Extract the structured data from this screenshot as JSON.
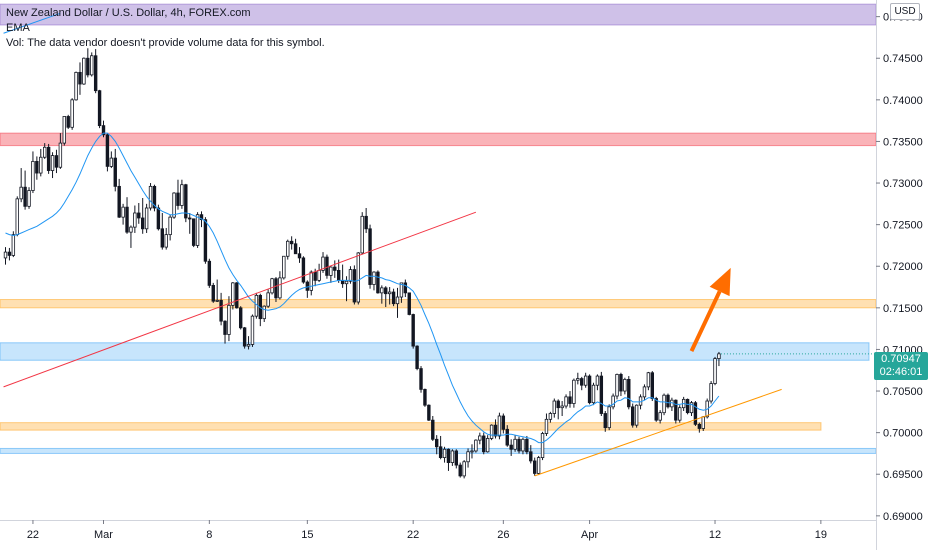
{
  "legend": {
    "title": "New Zealand Dollar / U.S. Dollar, 4h, FOREX.com",
    "ema": "EMA",
    "vol": "Vol: The data vendor doesn't provide volume data for this symbol."
  },
  "currency_button": "USD",
  "current_price": {
    "price": "0.70947",
    "countdown": "02:46:01"
  },
  "colors": {
    "up": "#26a69a",
    "down": "#ef5350",
    "candle": "#131722",
    "ema": "#2196f3",
    "trend_red": "#f23645",
    "trend_orange": "#ff9800",
    "arrow": "#ff6d00"
  },
  "chart_data": {
    "type": "candlestick",
    "symbol": "NZDUSD",
    "timeframe": "4h",
    "y_axis": {
      "ticks": [
        "0.75000",
        "0.74500",
        "0.74000",
        "0.73500",
        "0.73000",
        "0.72500",
        "0.72000",
        "0.71500",
        "0.71000",
        "0.70500",
        "0.70000",
        "0.69500",
        "0.69000"
      ],
      "ylim": [
        0.6895,
        0.752
      ]
    },
    "x_axis": {
      "ticks": [
        "22",
        "Mar",
        "8",
        "15",
        "22",
        "26",
        "Apr",
        "12",
        "19"
      ]
    },
    "zones": [
      {
        "color": "purple",
        "from": 0.749,
        "to": 0.7515
      },
      {
        "color": "red",
        "from": 0.7345,
        "to": 0.736
      },
      {
        "color": "orange",
        "from": 0.715,
        "to": 0.716
      },
      {
        "color": "blue",
        "from": 0.7087,
        "to": 0.7108
      },
      {
        "color": "orange",
        "from": 0.7003,
        "to": 0.7012
      },
      {
        "color": "blue",
        "from": 0.6975,
        "to": 0.6981
      }
    ],
    "candles": [
      [
        0.721,
        0.7223,
        0.7202,
        0.7217
      ],
      [
        0.7217,
        0.7222,
        0.7207,
        0.7213
      ],
      [
        0.7213,
        0.7242,
        0.7211,
        0.7238
      ],
      [
        0.7238,
        0.7284,
        0.7236,
        0.7281
      ],
      [
        0.7281,
        0.7318,
        0.7277,
        0.7295
      ],
      [
        0.7295,
        0.7315,
        0.7268,
        0.7272
      ],
      [
        0.7272,
        0.7295,
        0.7269,
        0.7291
      ],
      [
        0.7291,
        0.7338,
        0.7288,
        0.7326
      ],
      [
        0.7326,
        0.7332,
        0.7304,
        0.7312
      ],
      [
        0.7312,
        0.7341,
        0.7308,
        0.7331
      ],
      [
        0.7331,
        0.7348,
        0.7329,
        0.7343
      ],
      [
        0.7343,
        0.7347,
        0.7311,
        0.7315
      ],
      [
        0.7315,
        0.7337,
        0.7306,
        0.7333
      ],
      [
        0.7333,
        0.734,
        0.7312,
        0.7319
      ],
      [
        0.7319,
        0.736,
        0.7317,
        0.7348
      ],
      [
        0.7348,
        0.738,
        0.7345,
        0.738
      ],
      [
        0.738,
        0.7382,
        0.7365,
        0.7367
      ],
      [
        0.7367,
        0.7402,
        0.7364,
        0.74
      ],
      [
        0.74,
        0.7434,
        0.7399,
        0.7433
      ],
      [
        0.7433,
        0.7445,
        0.7406,
        0.7419
      ],
      [
        0.7419,
        0.7451,
        0.7418,
        0.745
      ],
      [
        0.745,
        0.7462,
        0.7427,
        0.743
      ],
      [
        0.743,
        0.7457,
        0.7428,
        0.7453
      ],
      [
        0.7453,
        0.7461,
        0.7408,
        0.7411
      ],
      [
        0.7411,
        0.7412,
        0.7366,
        0.7369
      ],
      [
        0.7369,
        0.7375,
        0.7355,
        0.7358
      ],
      [
        0.7358,
        0.736,
        0.7314,
        0.732
      ],
      [
        0.732,
        0.7338,
        0.7318,
        0.733
      ],
      [
        0.733,
        0.7341,
        0.729,
        0.7296
      ],
      [
        0.7296,
        0.7305,
        0.7258,
        0.7259
      ],
      [
        0.7259,
        0.7275,
        0.725,
        0.7271
      ],
      [
        0.7271,
        0.7283,
        0.7239,
        0.7241
      ],
      [
        0.7241,
        0.7249,
        0.7222,
        0.7247
      ],
      [
        0.7247,
        0.7273,
        0.724,
        0.7264
      ],
      [
        0.7264,
        0.7276,
        0.7251,
        0.7258
      ],
      [
        0.7258,
        0.7282,
        0.7239,
        0.7245
      ],
      [
        0.7245,
        0.7275,
        0.724,
        0.727
      ],
      [
        0.727,
        0.73,
        0.7267,
        0.7296
      ],
      [
        0.7296,
        0.7298,
        0.7266,
        0.727
      ],
      [
        0.727,
        0.7274,
        0.7243,
        0.7245
      ],
      [
        0.7245,
        0.7264,
        0.722,
        0.7223
      ],
      [
        0.7223,
        0.7246,
        0.722,
        0.7238
      ],
      [
        0.7238,
        0.7262,
        0.7231,
        0.7259
      ],
      [
        0.7259,
        0.7289,
        0.7257,
        0.7288
      ],
      [
        0.7288,
        0.7304,
        0.7268,
        0.7273
      ],
      [
        0.7273,
        0.7304,
        0.7269,
        0.7298
      ],
      [
        0.7298,
        0.7299,
        0.7253,
        0.7258
      ],
      [
        0.7258,
        0.7264,
        0.7239,
        0.7257
      ],
      [
        0.7257,
        0.7257,
        0.7223,
        0.7225
      ],
      [
        0.7225,
        0.7265,
        0.7222,
        0.7262
      ],
      [
        0.7262,
        0.7266,
        0.7247,
        0.7256
      ],
      [
        0.7256,
        0.7259,
        0.7203,
        0.7206
      ],
      [
        0.7206,
        0.7209,
        0.7174,
        0.7177
      ],
      [
        0.7177,
        0.718,
        0.7156,
        0.7158
      ],
      [
        0.7158,
        0.7184,
        0.7157,
        0.7159
      ],
      [
        0.7159,
        0.7168,
        0.7129,
        0.7134
      ],
      [
        0.7134,
        0.7135,
        0.7107,
        0.7118
      ],
      [
        0.7118,
        0.7164,
        0.711,
        0.7153
      ],
      [
        0.7153,
        0.7181,
        0.7148,
        0.718
      ],
      [
        0.718,
        0.7181,
        0.7149,
        0.715
      ],
      [
        0.715,
        0.7152,
        0.7124,
        0.7126
      ],
      [
        0.7126,
        0.7127,
        0.7101,
        0.7104
      ],
      [
        0.7104,
        0.7116,
        0.71,
        0.7106
      ],
      [
        0.7106,
        0.7142,
        0.7103,
        0.714
      ],
      [
        0.714,
        0.7168,
        0.7137,
        0.7165
      ],
      [
        0.7165,
        0.7167,
        0.7128,
        0.7137
      ],
      [
        0.7137,
        0.7153,
        0.7133,
        0.7152
      ],
      [
        0.7152,
        0.7172,
        0.715,
        0.7168
      ],
      [
        0.7168,
        0.7186,
        0.7166,
        0.7185
      ],
      [
        0.7185,
        0.7187,
        0.7157,
        0.7162
      ],
      [
        0.7162,
        0.7194,
        0.716,
        0.7186
      ],
      [
        0.7186,
        0.7212,
        0.7184,
        0.7212
      ],
      [
        0.7212,
        0.7232,
        0.7208,
        0.723
      ],
      [
        0.723,
        0.7236,
        0.722,
        0.7227
      ],
      [
        0.7227,
        0.7233,
        0.7215,
        0.7215
      ],
      [
        0.7215,
        0.7223,
        0.7204,
        0.721
      ],
      [
        0.721,
        0.7212,
        0.7179,
        0.7181
      ],
      [
        0.7181,
        0.7183,
        0.7162,
        0.7171
      ],
      [
        0.7171,
        0.7195,
        0.7165,
        0.7193
      ],
      [
        0.7193,
        0.7197,
        0.7176,
        0.7183
      ],
      [
        0.7183,
        0.7203,
        0.7181,
        0.7195
      ],
      [
        0.7195,
        0.7217,
        0.7192,
        0.7211
      ],
      [
        0.7211,
        0.7214,
        0.7185,
        0.7189
      ],
      [
        0.7189,
        0.72,
        0.718,
        0.7199
      ],
      [
        0.7199,
        0.7207,
        0.7186,
        0.7195
      ],
      [
        0.7195,
        0.7208,
        0.718,
        0.7183
      ],
      [
        0.7183,
        0.7202,
        0.7174,
        0.7179
      ],
      [
        0.7179,
        0.7188,
        0.7158,
        0.7182
      ],
      [
        0.7182,
        0.72,
        0.7179,
        0.7196
      ],
      [
        0.7196,
        0.7201,
        0.7154,
        0.7157
      ],
      [
        0.7157,
        0.7217,
        0.7154,
        0.7216
      ],
      [
        0.7216,
        0.7265,
        0.7214,
        0.726
      ],
      [
        0.726,
        0.727,
        0.724,
        0.7245
      ],
      [
        0.7245,
        0.725,
        0.7173,
        0.7178
      ],
      [
        0.7178,
        0.7194,
        0.7171,
        0.7193
      ],
      [
        0.7193,
        0.7195,
        0.7167,
        0.7168
      ],
      [
        0.7168,
        0.7177,
        0.7155,
        0.7174
      ],
      [
        0.7174,
        0.7176,
        0.7151,
        0.7167
      ],
      [
        0.7167,
        0.7175,
        0.7154,
        0.7169
      ],
      [
        0.7169,
        0.7173,
        0.7152,
        0.7155
      ],
      [
        0.7155,
        0.7174,
        0.7138,
        0.7163
      ],
      [
        0.7163,
        0.718,
        0.7156,
        0.718
      ],
      [
        0.718,
        0.7184,
        0.7163,
        0.7168
      ],
      [
        0.7168,
        0.7168,
        0.7141,
        0.7142
      ],
      [
        0.7142,
        0.7143,
        0.7101,
        0.7104
      ],
      [
        0.7104,
        0.7105,
        0.7075,
        0.7077
      ],
      [
        0.7077,
        0.708,
        0.7048,
        0.7052
      ],
      [
        0.7052,
        0.7053,
        0.7031,
        0.7033
      ],
      [
        0.7033,
        0.7034,
        0.7014,
        0.7015
      ],
      [
        0.7015,
        0.702,
        0.699,
        0.6992
      ],
      [
        0.6992,
        0.6997,
        0.6974,
        0.6983
      ],
      [
        0.6983,
        0.6996,
        0.6968,
        0.697
      ],
      [
        0.697,
        0.6983,
        0.6964,
        0.698
      ],
      [
        0.698,
        0.6981,
        0.6954,
        0.6964
      ],
      [
        0.6964,
        0.698,
        0.696,
        0.6978
      ],
      [
        0.6978,
        0.698,
        0.6957,
        0.6961
      ],
      [
        0.6961,
        0.6964,
        0.6946,
        0.6948
      ],
      [
        0.6948,
        0.6967,
        0.6945,
        0.6965
      ],
      [
        0.6965,
        0.6981,
        0.6958,
        0.6977
      ],
      [
        0.6977,
        0.6986,
        0.6969,
        0.6978
      ],
      [
        0.6978,
        0.6992,
        0.6976,
        0.6991
      ],
      [
        0.6991,
        0.7,
        0.6986,
        0.6996
      ],
      [
        0.6996,
        0.7,
        0.6974,
        0.6977
      ],
      [
        0.6977,
        0.6997,
        0.6976,
        0.6993
      ],
      [
        0.6993,
        0.701,
        0.6991,
        0.7009
      ],
      [
        0.7009,
        0.7016,
        0.6993,
        0.6996
      ],
      [
        0.6996,
        0.7024,
        0.6992,
        0.702
      ],
      [
        0.702,
        0.7023,
        0.6999,
        0.7004
      ],
      [
        0.7004,
        0.7009,
        0.6983,
        0.6985
      ],
      [
        0.6985,
        0.6992,
        0.6972,
        0.698
      ],
      [
        0.698,
        0.6997,
        0.6977,
        0.6992
      ],
      [
        0.6992,
        0.6995,
        0.6975,
        0.6978
      ],
      [
        0.6978,
        0.6994,
        0.6974,
        0.6992
      ],
      [
        0.6992,
        0.6996,
        0.6974,
        0.6977
      ],
      [
        0.6977,
        0.6985,
        0.6963,
        0.6966
      ],
      [
        0.6966,
        0.697,
        0.6948,
        0.6951
      ],
      [
        0.6951,
        0.6972,
        0.6949,
        0.697
      ],
      [
        0.697,
        0.7001,
        0.6967,
        0.6999
      ],
      [
        0.6999,
        0.7023,
        0.6996,
        0.7016
      ],
      [
        0.7016,
        0.7025,
        0.7012,
        0.7023
      ],
      [
        0.7023,
        0.7041,
        0.7018,
        0.7038
      ],
      [
        0.7038,
        0.704,
        0.7016,
        0.703
      ],
      [
        0.703,
        0.7038,
        0.702,
        0.7032
      ],
      [
        0.7032,
        0.7046,
        0.7029,
        0.7043
      ],
      [
        0.7043,
        0.705,
        0.703,
        0.7035
      ],
      [
        0.7035,
        0.7065,
        0.703,
        0.7063
      ],
      [
        0.7063,
        0.7072,
        0.7058,
        0.7065
      ],
      [
        0.7065,
        0.7067,
        0.7051,
        0.7057
      ],
      [
        0.7057,
        0.7072,
        0.7054,
        0.7068
      ],
      [
        0.7068,
        0.707,
        0.7034,
        0.7036
      ],
      [
        0.7036,
        0.706,
        0.7033,
        0.7057
      ],
      [
        0.7057,
        0.707,
        0.7051,
        0.7068
      ],
      [
        0.7068,
        0.7073,
        0.702,
        0.7023
      ],
      [
        0.7023,
        0.7026,
        0.7001,
        0.7006
      ],
      [
        0.7006,
        0.7034,
        0.7003,
        0.7031
      ],
      [
        0.7031,
        0.7047,
        0.7028,
        0.7044
      ],
      [
        0.7044,
        0.7071,
        0.704,
        0.707
      ],
      [
        0.707,
        0.7072,
        0.7044,
        0.705
      ],
      [
        0.705,
        0.7066,
        0.7046,
        0.7064
      ],
      [
        0.7064,
        0.7068,
        0.7028,
        0.7031
      ],
      [
        0.7031,
        0.7035,
        0.7006,
        0.7009
      ],
      [
        0.7009,
        0.7034,
        0.7006,
        0.7033
      ],
      [
        0.7033,
        0.7046,
        0.7028,
        0.7043
      ],
      [
        0.7043,
        0.7058,
        0.7039,
        0.7055
      ],
      [
        0.7055,
        0.7073,
        0.7051,
        0.7072
      ],
      [
        0.7072,
        0.7074,
        0.7038,
        0.7041
      ],
      [
        0.7041,
        0.7043,
        0.7013,
        0.7015
      ],
      [
        0.7015,
        0.7027,
        0.7011,
        0.7024
      ],
      [
        0.7024,
        0.7047,
        0.7021,
        0.7045
      ],
      [
        0.7045,
        0.7047,
        0.7029,
        0.7031
      ],
      [
        0.7031,
        0.7042,
        0.7026,
        0.7039
      ],
      [
        0.7039,
        0.704,
        0.7011,
        0.7015
      ],
      [
        0.7015,
        0.7033,
        0.7012,
        0.703
      ],
      [
        0.703,
        0.7043,
        0.7026,
        0.704
      ],
      [
        0.704,
        0.7041,
        0.7022,
        0.7024
      ],
      [
        0.7024,
        0.7038,
        0.702,
        0.7036
      ],
      [
        0.7036,
        0.7038,
        0.7008,
        0.701
      ],
      [
        0.701,
        0.7012,
        0.7,
        0.7005
      ],
      [
        0.7005,
        0.702,
        0.7002,
        0.7019
      ],
      [
        0.7019,
        0.7041,
        0.7017,
        0.7038
      ],
      [
        0.7038,
        0.7062,
        0.7035,
        0.7059
      ],
      [
        0.7059,
        0.7091,
        0.7057,
        0.7089
      ],
      [
        0.7089,
        0.7097,
        0.708,
        0.70947
      ]
    ],
    "ema": [
      0.724,
      0.7238,
      0.7237,
      0.7238,
      0.724,
      0.7242,
      0.7244,
      0.7246,
      0.7248,
      0.7251,
      0.7254,
      0.7257,
      0.726,
      0.7264,
      0.7269,
      0.7276,
      0.7284,
      0.7292,
      0.7301,
      0.7311,
      0.7322,
      0.7333,
      0.7342,
      0.735,
      0.7356,
      0.736,
      0.736,
      0.7356,
      0.735,
      0.7342,
      0.7333,
      0.7324,
      0.7315,
      0.7307,
      0.7299,
      0.7291,
      0.7284,
      0.7278,
      0.7273,
      0.7269,
      0.7266,
      0.7264,
      0.7262,
      0.7262,
      0.7263,
      0.7264,
      0.7264,
      0.7263,
      0.7261,
      0.7259,
      0.7257,
      0.7254,
      0.7248,
      0.724,
      0.723,
      0.7219,
      0.7208,
      0.7198,
      0.719,
      0.7183,
      0.7177,
      0.717,
      0.7163,
      0.7158,
      0.7154,
      0.715,
      0.7148,
      0.7147,
      0.7148,
      0.7149,
      0.7151,
      0.7155,
      0.716,
      0.7165,
      0.7169,
      0.7172,
      0.7174,
      0.7175,
      0.7176,
      0.7177,
      0.7178,
      0.7179,
      0.718,
      0.7181,
      0.7182,
      0.7183,
      0.7183,
      0.7183,
      0.7183,
      0.7182,
      0.7183,
      0.7186,
      0.7189,
      0.7188,
      0.7188,
      0.7187,
      0.7186,
      0.7184,
      0.7183,
      0.7181,
      0.7179,
      0.7178,
      0.7177,
      0.7174,
      0.717,
      0.7162,
      0.7153,
      0.7142,
      0.7131,
      0.7119,
      0.7106,
      0.7094,
      0.7081,
      0.7069,
      0.7057,
      0.7047,
      0.7037,
      0.7028,
      0.702,
      0.7014,
      0.7009,
      0.7005,
      0.7001,
      0.6998,
      0.6997,
      0.6997,
      0.6997,
      0.6997,
      0.6998,
      0.6998,
      0.6997,
      0.6996,
      0.6995,
      0.6994,
      0.6993,
      0.6991,
      0.6988,
      0.6988,
      0.6991,
      0.6995,
      0.7,
      0.7005,
      0.7009,
      0.7013,
      0.7016,
      0.7021,
      0.7025,
      0.7028,
      0.7032,
      0.7032,
      0.7034,
      0.7037,
      0.7035,
      0.7032,
      0.7032,
      0.7034,
      0.7038,
      0.7039,
      0.7042,
      0.7041,
      0.7037,
      0.7037,
      0.7037,
      0.7039,
      0.7042,
      0.7042,
      0.7039,
      0.7037,
      0.7037,
      0.7036,
      0.7036,
      0.7034,
      0.7034,
      0.7035,
      0.7034,
      0.7034,
      0.7031,
      0.7028,
      0.7027,
      0.7028,
      0.7032,
      0.7038,
      0.7044
    ],
    "trend_lines": [
      {
        "name": "top-left-blue",
        "color": "#2196f3",
        "from": [
          -0.5,
          0.748
        ],
        "to": [
          14,
          0.7504
        ]
      },
      {
        "name": "red-rising",
        "color": "#f23645",
        "from": [
          -0.5,
          0.7055
        ],
        "to": [
          120,
          0.7265
        ]
      },
      {
        "name": "orange-support",
        "color": "#ff9800",
        "from": [
          135,
          0.6948
        ],
        "to": [
          198,
          0.7052
        ]
      }
    ],
    "arrow": {
      "color": "#ff6d00",
      "from": [
        175,
        0.7098
      ],
      "to": [
        185,
        0.7198
      ]
    }
  }
}
